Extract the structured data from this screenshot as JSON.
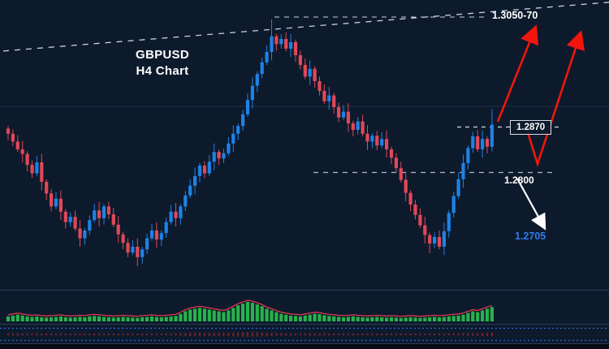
{
  "header": {
    "title_line1": "GBPUSD",
    "title_line2": "H4 Chart"
  },
  "price_labels": {
    "resistance": "1.3050-70",
    "breakout": "1.2870",
    "support": "1.2800",
    "target": "1.2705"
  },
  "colors": {
    "background": "#0d1a2c",
    "bull_candle": "#1e82e6",
    "bear_candle": "#e04858",
    "histogram": "#27b24b",
    "signal_line": "#e03a4e",
    "lower_marks": "#6f2130",
    "dotted_line": "#2e66d9",
    "dashed_light": "#c9d2de",
    "dashed_gray": "#aeb8c6",
    "arrow_red": "#f2150d",
    "arrow_white": "#ffffff",
    "target_blue": "#2f7bf0",
    "separator": "#2c3c55",
    "gridline": "#1f3048"
  },
  "chart_data": {
    "type": "candlestick",
    "pair": "GBPUSD",
    "timeframe": "H4",
    "title": "GBPUSD H4 Chart",
    "y_axis": {
      "min": 1.2621,
      "max": 1.3066
    },
    "x_axis": "time (H4 bars)",
    "price_levels": {
      "resistance_zone": "1.3050-70",
      "breakout_level": 1.287,
      "support_level": 1.28,
      "bearish_target": 1.2705
    },
    "first_open": 1.2868,
    "closes": [
      1.286,
      1.2848,
      1.2836,
      1.2829,
      1.2812,
      1.2799,
      1.2816,
      1.2786,
      1.2768,
      1.2748,
      1.276,
      1.274,
      1.2724,
      1.2732,
      1.2714,
      1.2699,
      1.2711,
      1.2727,
      1.2742,
      1.273,
      1.2748,
      1.2736,
      1.272,
      1.2705,
      1.2692,
      1.2677,
      1.2686,
      1.267,
      1.2682,
      1.2699,
      1.2711,
      1.2697,
      1.2707,
      1.2724,
      1.274,
      1.273,
      1.2748,
      1.2765,
      1.278,
      1.2795,
      1.2811,
      1.2799,
      1.2817,
      1.2832,
      1.2822,
      1.283,
      1.2845,
      1.286,
      1.2872,
      1.289,
      1.2912,
      1.2934,
      1.2952,
      1.297,
      1.2986,
      1.301,
      1.2998,
      1.3006,
      1.2991,
      1.3001,
      1.2981,
      1.2966,
      1.2948,
      1.296,
      1.2941,
      1.2926,
      1.291,
      1.2919,
      1.2901,
      1.2885,
      1.2894,
      1.2876,
      1.2866,
      1.2879,
      1.286,
      1.2848,
      1.2857,
      1.2842,
      1.2852,
      1.2836,
      1.2823,
      1.2807,
      1.2789,
      1.2769,
      1.2751,
      1.2735,
      1.2719,
      1.2704,
      1.2691,
      1.2701,
      1.2686,
      1.271,
      1.2738,
      1.2764,
      1.279,
      1.2815,
      1.2838,
      1.2856,
      1.2836,
      1.2852,
      1.284,
      1.2874
    ],
    "wick_overrides": {
      "27": [
        0,
        1.2656
      ],
      "55": [
        1.3036,
        0
      ],
      "88": [
        0,
        1.2676
      ],
      "101": [
        1.2898,
        0
      ]
    },
    "indicator": {
      "type": "oscillator-histogram",
      "values": [
        0.15,
        0.2,
        0.25,
        0.2,
        0.15,
        0.12,
        0.15,
        0.1,
        0.08,
        0.1,
        0.12,
        0.15,
        0.1,
        0.08,
        0.1,
        0.12,
        0.1,
        0.15,
        0.18,
        0.15,
        0.12,
        0.1,
        0.08,
        0.1,
        0.12,
        0.1,
        0.08,
        0.06,
        0.1,
        0.12,
        0.15,
        0.12,
        0.1,
        0.12,
        0.15,
        0.18,
        0.3,
        0.45,
        0.55,
        0.6,
        0.65,
        0.6,
        0.55,
        0.5,
        0.45,
        0.4,
        0.5,
        0.65,
        0.8,
        0.9,
        1.0,
        0.95,
        0.85,
        0.75,
        0.6,
        0.5,
        0.4,
        0.3,
        0.25,
        0.2,
        0.18,
        0.15,
        0.2,
        0.25,
        0.3,
        0.28,
        0.22,
        0.18,
        0.15,
        0.12,
        0.1,
        0.12,
        0.15,
        0.12,
        0.1,
        0.08,
        0.1,
        0.12,
        0.1,
        0.08,
        0.1,
        0.08,
        0.06,
        0.08,
        0.1,
        0.08,
        0.06,
        0.08,
        0.1,
        0.12,
        0.1,
        0.12,
        0.15,
        0.18,
        0.2,
        0.25,
        0.35,
        0.45,
        0.4,
        0.5,
        0.6,
        0.7
      ]
    },
    "annotations": [
      {
        "text": "1.3050-70",
        "type": "resistance-zone-label",
        "color": "#ffffff"
      },
      {
        "text": "1.2870",
        "type": "breakout-level-label",
        "color": "#ffffff"
      },
      {
        "text": "1.2800",
        "type": "support-level-label",
        "color": "#ffffff"
      },
      {
        "text": "1.2705",
        "type": "bearish-target-label",
        "color": "#2f7bf0"
      },
      {
        "type": "descending... rising-trendline",
        "style": "dashed",
        "color": "#c9d2de"
      },
      {
        "type": "bullish-projection-arrows",
        "color": "#f2150d",
        "description": "red zigzag arrows projecting rally to 1.3050-70, pullback to 1.2800, rally again"
      },
      {
        "type": "bearish-alternative-arrow",
        "color": "#ffffff",
        "description": "white arrow pointing down toward 1.2705"
      }
    ]
  }
}
